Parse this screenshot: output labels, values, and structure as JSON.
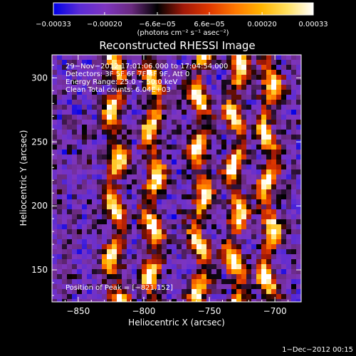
{
  "colorbar": {
    "tick_labels": [
      "−0.00033",
      "−0.00020",
      "−6.6e−05",
      "6.6e−05",
      "0.00020",
      "0.00033"
    ],
    "tick_values": [
      -0.00033,
      -0.0002,
      -6.6e-05,
      6.6e-05,
      0.0002,
      0.00033
    ],
    "range": [
      -0.00033,
      0.00033
    ],
    "units_label": "(photons cm⁻² s⁻¹ asec⁻²)",
    "colors": [
      "#0000e6",
      "#5a2bd6",
      "#7e35c0",
      "#6a2a80",
      "#000000",
      "#a01808",
      "#e03800",
      "#ff7800",
      "#ffb400",
      "#ffe060",
      "#ffffff"
    ]
  },
  "chart_data": {
    "type": "heatmap",
    "title": "Reconstructed RHESSI Image",
    "xlabel": "Heliocentric X (arcsec)",
    "ylabel": "Heliocentric Y (arcsec)",
    "xlim": [
      -870,
      -680
    ],
    "ylim": [
      125,
      318
    ],
    "x_ticks": [
      -850,
      -800,
      -750,
      -700
    ],
    "y_ticks": [
      150,
      200,
      250,
      300
    ],
    "x_tick_labels": [
      "−850",
      "−800",
      "−750",
      "−700"
    ],
    "y_tick_labels": [
      "150",
      "200",
      "250",
      "300"
    ],
    "bright_columns_x": [
      -822,
      -793,
      -757,
      -730,
      -705
    ],
    "peak_position": [
      -821,
      152
    ],
    "annotations": [
      "29−Nov−2012 17:01:06.000 to 17:04:54.000",
      "Detectors: 3F 5F 6F 7F 8F 9F, Att 0",
      "Energy Range: 25.0 − 50.0 keV",
      "Clean    Total counts: 6.04E+03"
    ],
    "peak_label": "Position of Peak = [−821,152]"
  },
  "footer": {
    "timestamp": "1−Dec−2012 00:15"
  }
}
